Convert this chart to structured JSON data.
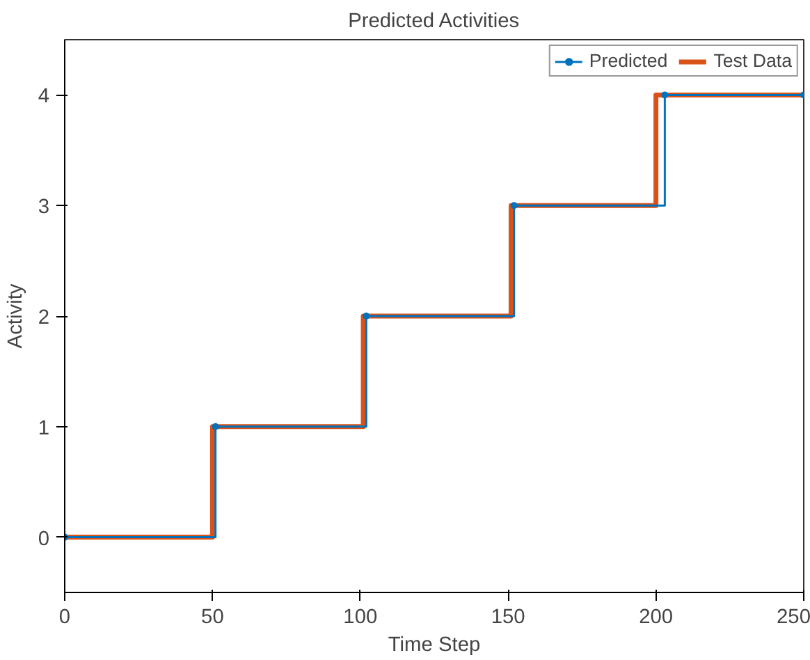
{
  "chart_data": {
    "type": "step",
    "title": "Predicted Activities",
    "xlabel": "Time Step",
    "ylabel": "Activity",
    "xlim": [
      0,
      250
    ],
    "xticks": [
      0,
      50,
      100,
      150,
      200,
      250
    ],
    "ylim": [
      -0.5,
      4.5
    ],
    "yticks": [
      0,
      1,
      2,
      3,
      4
    ],
    "legend": "top right",
    "grid": false,
    "series": [
      {
        "name": "Test Data",
        "color": "#d95319",
        "marker": "none",
        "x": [
          0,
          50,
          101,
          151,
          200,
          250
        ],
        "values": [
          0,
          1,
          2,
          3,
          4,
          4
        ]
      },
      {
        "name": "Predicted",
        "color": "#0072bd",
        "marker": "circle",
        "x": [
          0,
          51,
          102,
          152,
          203,
          250
        ],
        "values": [
          0,
          1,
          2,
          3,
          4,
          4
        ]
      }
    ]
  }
}
